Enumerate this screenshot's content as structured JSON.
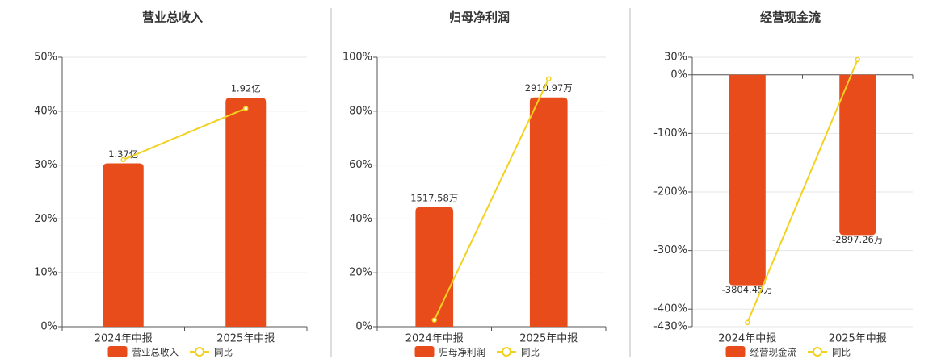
{
  "chart_data": [
    {
      "type": "bar",
      "title": "营业总收入",
      "categories": [
        "2024年中报",
        "2025年中报"
      ],
      "series": [
        {
          "name": "营业总收入",
          "color": "#e84c1a",
          "values": [
            1.37,
            1.92
          ],
          "value_labels": [
            "1.37亿",
            "1.92亿"
          ],
          "axis": "y2"
        },
        {
          "name": "同比",
          "type": "line",
          "color": "#f2d11f",
          "values": [
            31,
            40.5
          ]
        }
      ],
      "ylim": [
        0,
        50
      ],
      "yticks": [
        {
          "value": 0,
          "label": "0%"
        },
        {
          "value": 10,
          "label": "10%"
        },
        {
          "value": 20,
          "label": "20%"
        },
        {
          "value": 30,
          "label": "30%"
        },
        {
          "value": 40,
          "label": "40%"
        },
        {
          "value": 50,
          "label": "50%"
        }
      ],
      "y2lim": [
        0,
        2.26
      ],
      "grid": true
    },
    {
      "type": "bar",
      "title": "归母净利润",
      "categories": [
        "2024年中报",
        "2025年中报"
      ],
      "series": [
        {
          "name": "归母净利润",
          "color": "#e84c1a",
          "values": [
            1517.58,
            2910.97
          ],
          "value_labels": [
            "1517.58万",
            "2910.97万"
          ],
          "axis": "y2"
        },
        {
          "name": "同比",
          "type": "line",
          "color": "#f2d11f",
          "values": [
            2.5,
            92
          ]
        }
      ],
      "ylim": [
        0,
        100
      ],
      "yticks": [
        {
          "value": 0,
          "label": "0%"
        },
        {
          "value": 20,
          "label": "20%"
        },
        {
          "value": 40,
          "label": "40%"
        },
        {
          "value": 60,
          "label": "60%"
        },
        {
          "value": 80,
          "label": "80%"
        },
        {
          "value": 100,
          "label": "100%"
        }
      ],
      "y2lim": [
        0,
        3420
      ],
      "grid": true
    },
    {
      "type": "bar",
      "title": "经营现金流",
      "categories": [
        "2024年中报",
        "2025年中报"
      ],
      "series": [
        {
          "name": "经营现金流",
          "color": "#e84c1a",
          "values": [
            -3804.45,
            -2897.26
          ],
          "value_labels": [
            "-3804.45万",
            "-2897.26万"
          ],
          "axis": "y2"
        },
        {
          "name": "同比",
          "type": "line",
          "color": "#f2d11f",
          "values": [
            -423,
            26
          ]
        }
      ],
      "ylim": [
        -430,
        30
      ],
      "yticks": [
        {
          "value": -430,
          "label": "-430%"
        },
        {
          "value": -400,
          "label": "-400%"
        },
        {
          "value": -300,
          "label": "-300%"
        },
        {
          "value": -200,
          "label": "-200%"
        },
        {
          "value": -100,
          "label": "-100%"
        },
        {
          "value": 0,
          "label": "0%"
        },
        {
          "value": 30,
          "label": "30%"
        }
      ],
      "y2lim": [
        -4554,
        318
      ],
      "grid": true
    }
  ]
}
